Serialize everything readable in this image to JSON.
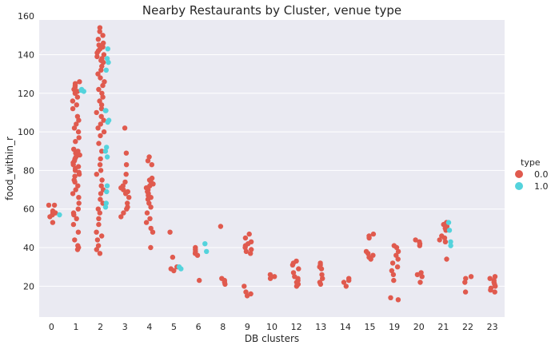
{
  "chart_data": {
    "type": "scatter",
    "title": "Nearby Restaurants by Cluster, venue type",
    "xlabel": "DB clusters",
    "ylabel": "food_within_r",
    "categories": [
      "0",
      "1",
      "2",
      "3",
      "4",
      "5",
      "6",
      "8",
      "9",
      "10",
      "12",
      "13",
      "14",
      "15",
      "19",
      "20",
      "21",
      "22",
      "23"
    ],
    "yticks": [
      20,
      40,
      60,
      80,
      100,
      120,
      140,
      160
    ],
    "ylim": [
      4,
      158
    ],
    "grid": true,
    "legend": {
      "title": "type",
      "position": "right",
      "entries": [
        "0.0",
        "1.0"
      ]
    },
    "colors": {
      "0.0": "#e05a4e",
      "1.0": "#54d3dc",
      "plot_bg": "#eaeaf2",
      "grid": "#ffffff"
    },
    "series": [
      {
        "name": "0.0",
        "points": [
          [
            "0",
            53
          ],
          [
            "0",
            56
          ],
          [
            "0",
            57
          ],
          [
            "0",
            58
          ],
          [
            "0",
            58
          ],
          [
            "0",
            59
          ],
          [
            "0",
            62
          ],
          [
            "0",
            62
          ],
          [
            "1",
            39
          ],
          [
            "1",
            40
          ],
          [
            "1",
            41
          ],
          [
            "1",
            44
          ],
          [
            "1",
            48
          ],
          [
            "1",
            52
          ],
          [
            "1",
            55
          ],
          [
            "1",
            57
          ],
          [
            "1",
            58
          ],
          [
            "1",
            60
          ],
          [
            "1",
            63
          ],
          [
            "1",
            66
          ],
          [
            "1",
            68
          ],
          [
            "1",
            70
          ],
          [
            "1",
            72
          ],
          [
            "1",
            74
          ],
          [
            "1",
            75
          ],
          [
            "1",
            77
          ],
          [
            "1",
            78
          ],
          [
            "1",
            79
          ],
          [
            "1",
            80
          ],
          [
            "1",
            81
          ],
          [
            "1",
            82
          ],
          [
            "1",
            83
          ],
          [
            "1",
            84
          ],
          [
            "1",
            85
          ],
          [
            "1",
            86
          ],
          [
            "1",
            87
          ],
          [
            "1",
            88
          ],
          [
            "1",
            89
          ],
          [
            "1",
            90
          ],
          [
            "1",
            91
          ],
          [
            "1",
            95
          ],
          [
            "1",
            97
          ],
          [
            "1",
            100
          ],
          [
            "1",
            102
          ],
          [
            "1",
            104
          ],
          [
            "1",
            106
          ],
          [
            "1",
            108
          ],
          [
            "1",
            112
          ],
          [
            "1",
            114
          ],
          [
            "1",
            116
          ],
          [
            "1",
            118
          ],
          [
            "1",
            120
          ],
          [
            "1",
            121
          ],
          [
            "1",
            122
          ],
          [
            "1",
            123
          ],
          [
            "1",
            124
          ],
          [
            "1",
            125
          ],
          [
            "1",
            126
          ],
          [
            "2",
            37
          ],
          [
            "2",
            39
          ],
          [
            "2",
            41
          ],
          [
            "2",
            44
          ],
          [
            "2",
            46
          ],
          [
            "2",
            48
          ],
          [
            "2",
            52
          ],
          [
            "2",
            55
          ],
          [
            "2",
            58
          ],
          [
            "2",
            60
          ],
          [
            "2",
            63
          ],
          [
            "2",
            65
          ],
          [
            "2",
            68
          ],
          [
            "2",
            70
          ],
          [
            "2",
            72
          ],
          [
            "2",
            75
          ],
          [
            "2",
            78
          ],
          [
            "2",
            80
          ],
          [
            "2",
            83
          ],
          [
            "2",
            86
          ],
          [
            "2",
            90
          ],
          [
            "2",
            94
          ],
          [
            "2",
            98
          ],
          [
            "2",
            100
          ],
          [
            "2",
            102
          ],
          [
            "2",
            104
          ],
          [
            "2",
            106
          ],
          [
            "2",
            108
          ],
          [
            "2",
            110
          ],
          [
            "2",
            112
          ],
          [
            "2",
            114
          ],
          [
            "2",
            116
          ],
          [
            "2",
            118
          ],
          [
            "2",
            120
          ],
          [
            "2",
            122
          ],
          [
            "2",
            124
          ],
          [
            "2",
            126
          ],
          [
            "2",
            128
          ],
          [
            "2",
            130
          ],
          [
            "2",
            132
          ],
          [
            "2",
            134
          ],
          [
            "2",
            136
          ],
          [
            "2",
            137
          ],
          [
            "2",
            138
          ],
          [
            "2",
            139
          ],
          [
            "2",
            140
          ],
          [
            "2",
            141
          ],
          [
            "2",
            142
          ],
          [
            "2",
            143
          ],
          [
            "2",
            144
          ],
          [
            "2",
            145
          ],
          [
            "2",
            146
          ],
          [
            "2",
            148
          ],
          [
            "2",
            150
          ],
          [
            "2",
            152
          ],
          [
            "2",
            154
          ],
          [
            "3",
            56
          ],
          [
            "3",
            58
          ],
          [
            "3",
            60
          ],
          [
            "3",
            61
          ],
          [
            "3",
            63
          ],
          [
            "3",
            66
          ],
          [
            "3",
            68
          ],
          [
            "3",
            69
          ],
          [
            "3",
            70
          ],
          [
            "3",
            71
          ],
          [
            "3",
            72
          ],
          [
            "3",
            74
          ],
          [
            "3",
            78
          ],
          [
            "3",
            83
          ],
          [
            "3",
            89
          ],
          [
            "3",
            102
          ],
          [
            "4",
            40
          ],
          [
            "4",
            48
          ],
          [
            "4",
            50
          ],
          [
            "4",
            53
          ],
          [
            "4",
            55
          ],
          [
            "4",
            58
          ],
          [
            "4",
            61
          ],
          [
            "4",
            63
          ],
          [
            "4",
            65
          ],
          [
            "4",
            66
          ],
          [
            "4",
            67
          ],
          [
            "4",
            68
          ],
          [
            "4",
            69
          ],
          [
            "4",
            70
          ],
          [
            "4",
            71
          ],
          [
            "4",
            72
          ],
          [
            "4",
            73
          ],
          [
            "4",
            74
          ],
          [
            "4",
            75
          ],
          [
            "4",
            76
          ],
          [
            "4",
            83
          ],
          [
            "4",
            85
          ],
          [
            "4",
            87
          ],
          [
            "5",
            28
          ],
          [
            "5",
            29
          ],
          [
            "5",
            30
          ],
          [
            "5",
            35
          ],
          [
            "5",
            48
          ],
          [
            "6",
            23
          ],
          [
            "6",
            36
          ],
          [
            "6",
            37
          ],
          [
            "6",
            38
          ],
          [
            "6",
            39
          ],
          [
            "6",
            40
          ],
          [
            "8",
            21
          ],
          [
            "8",
            22
          ],
          [
            "8",
            23
          ],
          [
            "8",
            24
          ],
          [
            "8",
            51
          ],
          [
            "9",
            15
          ],
          [
            "9",
            16
          ],
          [
            "9",
            17
          ],
          [
            "9",
            20
          ],
          [
            "9",
            37
          ],
          [
            "9",
            38
          ],
          [
            "9",
            39
          ],
          [
            "9",
            40
          ],
          [
            "9",
            41
          ],
          [
            "9",
            42
          ],
          [
            "9",
            43
          ],
          [
            "9",
            45
          ],
          [
            "9",
            47
          ],
          [
            "10",
            24
          ],
          [
            "10",
            25
          ],
          [
            "10",
            26
          ],
          [
            "12",
            20
          ],
          [
            "12",
            21
          ],
          [
            "12",
            22
          ],
          [
            "12",
            23
          ],
          [
            "12",
            24
          ],
          [
            "12",
            25
          ],
          [
            "12",
            27
          ],
          [
            "12",
            29
          ],
          [
            "12",
            31
          ],
          [
            "12",
            32
          ],
          [
            "12",
            33
          ],
          [
            "13",
            21
          ],
          [
            "13",
            22
          ],
          [
            "13",
            24
          ],
          [
            "13",
            26
          ],
          [
            "13",
            29
          ],
          [
            "13",
            30
          ],
          [
            "13",
            31
          ],
          [
            "13",
            32
          ],
          [
            "14",
            20
          ],
          [
            "14",
            22
          ],
          [
            "14",
            23
          ],
          [
            "14",
            24
          ],
          [
            "15",
            34
          ],
          [
            "15",
            35
          ],
          [
            "15",
            36
          ],
          [
            "15",
            37
          ],
          [
            "15",
            38
          ],
          [
            "15",
            45
          ],
          [
            "15",
            46
          ],
          [
            "15",
            47
          ],
          [
            "19",
            13
          ],
          [
            "19",
            14
          ],
          [
            "19",
            23
          ],
          [
            "19",
            26
          ],
          [
            "19",
            28
          ],
          [
            "19",
            30
          ],
          [
            "19",
            32
          ],
          [
            "19",
            34
          ],
          [
            "19",
            36
          ],
          [
            "19",
            38
          ],
          [
            "19",
            40
          ],
          [
            "19",
            41
          ],
          [
            "20",
            22
          ],
          [
            "20",
            25
          ],
          [
            "20",
            26
          ],
          [
            "20",
            27
          ],
          [
            "20",
            41
          ],
          [
            "20",
            42
          ],
          [
            "20",
            43
          ],
          [
            "20",
            44
          ],
          [
            "21",
            34
          ],
          [
            "21",
            43
          ],
          [
            "21",
            44
          ],
          [
            "21",
            45
          ],
          [
            "21",
            46
          ],
          [
            "21",
            49
          ],
          [
            "21",
            50
          ],
          [
            "21",
            51
          ],
          [
            "21",
            52
          ],
          [
            "21",
            53
          ],
          [
            "22",
            17
          ],
          [
            "22",
            22
          ],
          [
            "22",
            24
          ],
          [
            "22",
            25
          ],
          [
            "23",
            17
          ],
          [
            "23",
            18
          ],
          [
            "23",
            19
          ],
          [
            "23",
            20
          ],
          [
            "23",
            21
          ],
          [
            "23",
            22
          ],
          [
            "23",
            23
          ],
          [
            "23",
            24
          ],
          [
            "23",
            25
          ]
        ]
      },
      {
        "name": "1.0",
        "points": [
          [
            "0",
            57
          ],
          [
            "1",
            121
          ],
          [
            "1",
            122
          ],
          [
            "1",
            121.5
          ],
          [
            "2",
            61
          ],
          [
            "2",
            63
          ],
          [
            "2",
            69
          ],
          [
            "2",
            72
          ],
          [
            "2",
            87
          ],
          [
            "2",
            90
          ],
          [
            "2",
            92
          ],
          [
            "2",
            105
          ],
          [
            "2",
            106
          ],
          [
            "2",
            111
          ],
          [
            "2",
            111
          ],
          [
            "2",
            132
          ],
          [
            "2",
            136
          ],
          [
            "2",
            138
          ],
          [
            "2",
            143
          ],
          [
            "5",
            29
          ],
          [
            "5",
            30
          ],
          [
            "6",
            38
          ],
          [
            "6",
            42
          ],
          [
            "21",
            41
          ],
          [
            "21",
            43
          ],
          [
            "21",
            49
          ],
          [
            "21",
            53
          ]
        ]
      }
    ]
  }
}
